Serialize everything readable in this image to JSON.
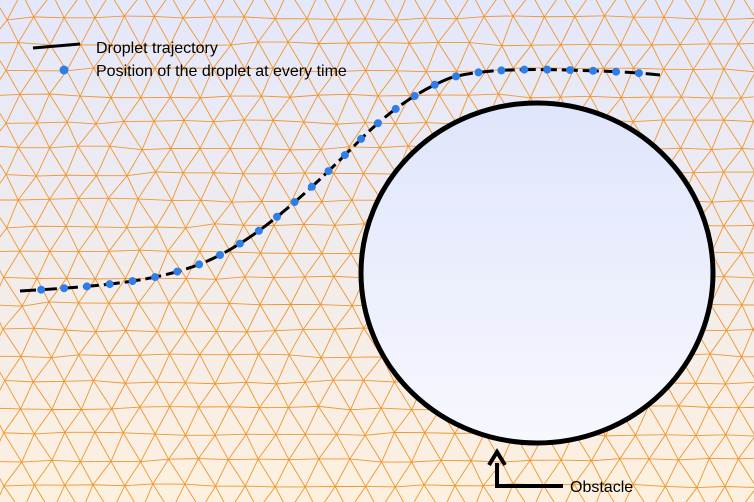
{
  "legend": {
    "trajectory_label": "Droplet trajectory",
    "position_label": "Position of the droplet at every time"
  },
  "annotation": {
    "obstacle_label": "Obstacle"
  },
  "colors": {
    "mesh": "#f0962e",
    "background_top": "#e4e8fb",
    "background_bottom": "#fdf0df",
    "obstacle_fill_top": "#dfe5fb",
    "obstacle_fill_bottom": "#f7f8fe",
    "obstacle_stroke": "#000000",
    "trajectory": "#000000",
    "droplet": "#2f7de8"
  }
}
